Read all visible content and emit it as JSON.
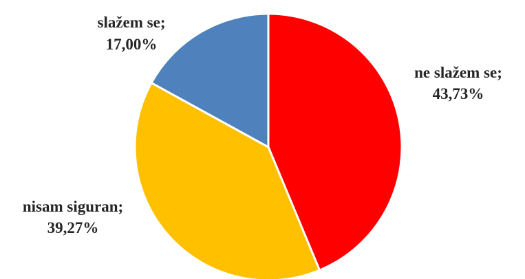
{
  "chart_data": {
    "type": "pie",
    "categories": [
      "ne slažem se",
      "nisam siguran",
      "slažem se"
    ],
    "values": [
      43.73,
      39.27,
      17.0
    ],
    "labels": [
      {
        "name": "ne slažem se;",
        "value": "43,73%"
      },
      {
        "name": "nisam siguran;",
        "value": "39,27%"
      },
      {
        "name": "slažem se;",
        "value": "17,00%"
      }
    ],
    "colors": [
      "#FF0000",
      "#FFC000",
      "#4F81BD"
    ],
    "start": "12 o'clock, clockwise",
    "legend": "none"
  }
}
